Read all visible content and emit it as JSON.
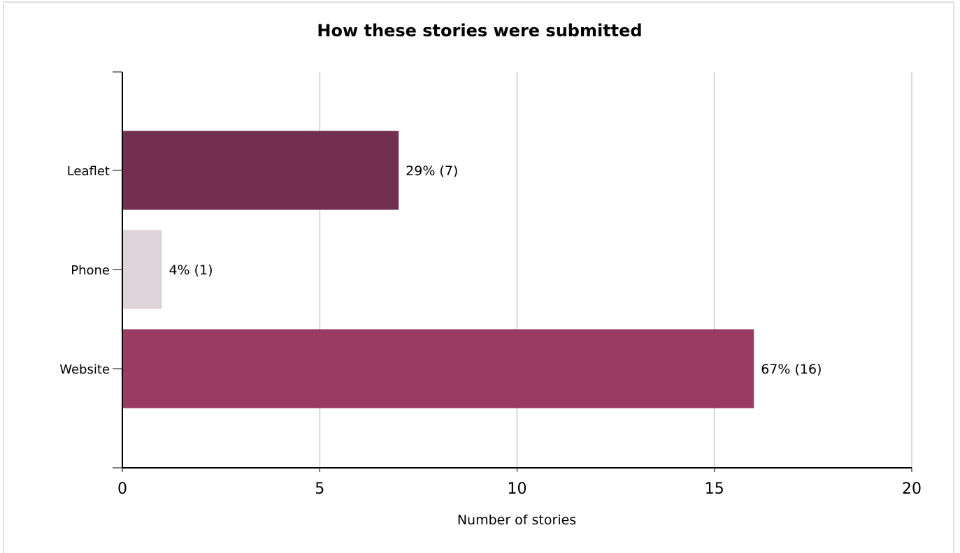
{
  "chart_data": {
    "type": "bar",
    "orientation": "horizontal",
    "title": "How these stories were submitted",
    "xlabel": "Number of stories",
    "ylabel": "",
    "categories": [
      "Leaflet",
      "Phone",
      "Website"
    ],
    "values": [
      7,
      1,
      16
    ],
    "data_labels": [
      "29% (7)",
      "4% (1)",
      "67% (16)"
    ],
    "colors": [
      "#722f51",
      "#dfd3da",
      "#983c64"
    ],
    "xlim": [
      0,
      20
    ],
    "xticks": [
      0,
      5,
      10,
      15,
      20
    ],
    "xtick_labels": [
      "0",
      "5",
      "10",
      "15",
      "20"
    ],
    "grid": "vertical",
    "legend": "none"
  }
}
